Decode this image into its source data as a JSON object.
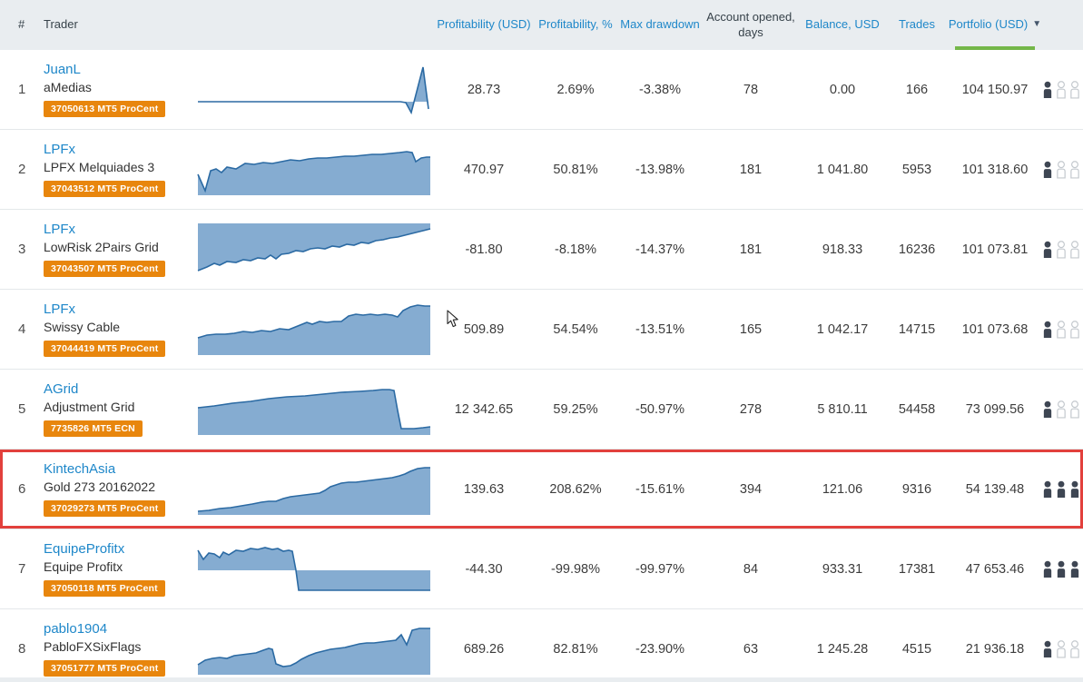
{
  "header": {
    "rank": "#",
    "trader": "Trader",
    "profitability_usd": "Profitability (USD)",
    "profitability_pct": "Profitability, %",
    "max_drawdown": "Max drawdown",
    "account_opened": "Account opened, days",
    "balance": "Balance, USD",
    "trades": "Trades",
    "portfolio": "Portfolio (USD)",
    "sort_icon": "▼",
    "sorted_column": "Portfolio (USD)",
    "sort_direction": "descending"
  },
  "colors": {
    "header_bg": "#e9edf0",
    "link_blue": "#1e87c9",
    "badge_orange": "#e8860d",
    "spark_fill": "#85acd1",
    "spark_stroke": "#2b6aa3",
    "highlight_red": "#e2403c",
    "active_sort_green": "#74b749"
  },
  "rows": [
    {
      "rank": "1",
      "name": "JuanL",
      "strategy": "aMedias",
      "account_badge": "37050613 MT5 ProCent",
      "profitability_usd": "28.73",
      "profitability_pct": "2.69%",
      "max_drawdown": "-3.38%",
      "days": "78",
      "balance": "0.00",
      "trades": "166",
      "portfolio": "104 150.97",
      "investors_filled": 1,
      "investors_total": 3,
      "highlighted": false,
      "spark": {
        "mode": "baseline",
        "baseline": 42,
        "points": [
          [
            2,
            42
          ],
          [
            120,
            42
          ],
          [
            225,
            42
          ],
          [
            231,
            43
          ],
          [
            237,
            54
          ],
          [
            250,
            4
          ],
          [
            256,
            50
          ]
        ]
      }
    },
    {
      "rank": "2",
      "name": "LPFx",
      "strategy": "LPFX Melquiades 3",
      "account_badge": "37043512 MT5 ProCent",
      "profitability_usd": "470.97",
      "profitability_pct": "50.81%",
      "max_drawdown": "-13.98%",
      "days": "181",
      "balance": "1 041.80",
      "trades": "5953",
      "portfolio": "101 318.60",
      "investors_filled": 1,
      "investors_total": 3,
      "highlighted": false,
      "spark": {
        "mode": "bottom",
        "points": [
          [
            2,
            34
          ],
          [
            10,
            52
          ],
          [
            16,
            30
          ],
          [
            22,
            28
          ],
          [
            28,
            32
          ],
          [
            34,
            26
          ],
          [
            44,
            28
          ],
          [
            54,
            22
          ],
          [
            64,
            23
          ],
          [
            74,
            21
          ],
          [
            84,
            22
          ],
          [
            94,
            20
          ],
          [
            104,
            18
          ],
          [
            114,
            19
          ],
          [
            124,
            17
          ],
          [
            134,
            16
          ],
          [
            144,
            16
          ],
          [
            154,
            15
          ],
          [
            164,
            14
          ],
          [
            174,
            14
          ],
          [
            184,
            13
          ],
          [
            194,
            12
          ],
          [
            204,
            12
          ],
          [
            214,
            11
          ],
          [
            224,
            10
          ],
          [
            232,
            9
          ],
          [
            238,
            10
          ],
          [
            242,
            20
          ],
          [
            248,
            16
          ],
          [
            254,
            15
          ],
          [
            258,
            15
          ]
        ]
      }
    },
    {
      "rank": "3",
      "name": "LPFx",
      "strategy": "LowRisk 2Pairs Grid",
      "account_badge": "37043507 MT5 ProCent",
      "profitability_usd": "-81.80",
      "profitability_pct": "-8.18%",
      "max_drawdown": "-14.37%",
      "days": "181",
      "balance": "918.33",
      "trades": "16236",
      "portfolio": "101 073.81",
      "investors_filled": 1,
      "investors_total": 3,
      "highlighted": false,
      "spark": {
        "mode": "top",
        "points": [
          [
            2,
            52
          ],
          [
            12,
            48
          ],
          [
            20,
            44
          ],
          [
            26,
            46
          ],
          [
            34,
            42
          ],
          [
            44,
            43
          ],
          [
            52,
            40
          ],
          [
            60,
            41
          ],
          [
            68,
            38
          ],
          [
            76,
            39
          ],
          [
            82,
            35
          ],
          [
            88,
            39
          ],
          [
            94,
            34
          ],
          [
            102,
            33
          ],
          [
            110,
            30
          ],
          [
            118,
            31
          ],
          [
            126,
            28
          ],
          [
            134,
            27
          ],
          [
            142,
            28
          ],
          [
            150,
            25
          ],
          [
            158,
            26
          ],
          [
            166,
            23
          ],
          [
            174,
            24
          ],
          [
            182,
            21
          ],
          [
            190,
            22
          ],
          [
            198,
            19
          ],
          [
            206,
            18
          ],
          [
            214,
            16
          ],
          [
            222,
            15
          ],
          [
            230,
            13
          ],
          [
            238,
            11
          ],
          [
            246,
            9
          ],
          [
            254,
            7
          ],
          [
            258,
            6
          ]
        ]
      }
    },
    {
      "rank": "4",
      "name": "LPFx",
      "strategy": "Swissy Cable",
      "account_badge": "37044419 MT5 ProCent",
      "profitability_usd": "509.89",
      "profitability_pct": "54.54%",
      "max_drawdown": "-13.51%",
      "days": "165",
      "balance": "1 042.17",
      "trades": "14715",
      "portfolio": "101 073.68",
      "investors_filled": 1,
      "investors_total": 3,
      "highlighted": false,
      "spark": {
        "mode": "bottom",
        "points": [
          [
            2,
            38
          ],
          [
            12,
            35
          ],
          [
            22,
            34
          ],
          [
            32,
            34
          ],
          [
            42,
            33
          ],
          [
            52,
            31
          ],
          [
            62,
            32
          ],
          [
            72,
            30
          ],
          [
            82,
            31
          ],
          [
            92,
            28
          ],
          [
            102,
            29
          ],
          [
            112,
            25
          ],
          [
            122,
            21
          ],
          [
            128,
            23
          ],
          [
            136,
            20
          ],
          [
            144,
            21
          ],
          [
            152,
            20
          ],
          [
            160,
            20
          ],
          [
            168,
            14
          ],
          [
            176,
            12
          ],
          [
            184,
            13
          ],
          [
            192,
            12
          ],
          [
            200,
            13
          ],
          [
            208,
            12
          ],
          [
            216,
            13
          ],
          [
            222,
            15
          ],
          [
            228,
            8
          ],
          [
            236,
            4
          ],
          [
            244,
            2
          ],
          [
            252,
            3
          ],
          [
            258,
            3
          ]
        ]
      }
    },
    {
      "rank": "5",
      "name": "AGrid",
      "strategy": "Adjustment Grid",
      "account_badge": "7735826 MT5 ECN",
      "profitability_usd": "12 342.65",
      "profitability_pct": "59.25%",
      "max_drawdown": "-50.97%",
      "days": "278",
      "balance": "5 810.11",
      "trades": "54458",
      "portfolio": "73 099.56",
      "investors_filled": 1,
      "investors_total": 3,
      "highlighted": false,
      "spark": {
        "mode": "bottom",
        "points": [
          [
            2,
            27
          ],
          [
            20,
            25
          ],
          [
            40,
            22
          ],
          [
            60,
            20
          ],
          [
            80,
            17
          ],
          [
            100,
            15
          ],
          [
            120,
            14
          ],
          [
            140,
            12
          ],
          [
            160,
            10
          ],
          [
            180,
            9
          ],
          [
            195,
            8
          ],
          [
            205,
            7
          ],
          [
            213,
            7
          ],
          [
            218,
            8
          ],
          [
            222,
            30
          ],
          [
            226,
            50
          ],
          [
            240,
            50
          ],
          [
            250,
            49
          ],
          [
            258,
            48
          ]
        ]
      }
    },
    {
      "rank": "6",
      "name": "KintechAsia",
      "strategy": "Gold 273 20162022",
      "account_badge": "37029273 MT5 ProCent",
      "profitability_usd": "139.63",
      "profitability_pct": "208.62%",
      "max_drawdown": "-15.61%",
      "days": "394",
      "balance": "121.06",
      "trades": "9316",
      "portfolio": "54 139.48",
      "investors_filled": 3,
      "investors_total": 3,
      "highlighted": true,
      "spark": {
        "mode": "bottom",
        "points": [
          [
            2,
            53
          ],
          [
            14,
            52
          ],
          [
            26,
            50
          ],
          [
            38,
            49
          ],
          [
            50,
            47
          ],
          [
            62,
            45
          ],
          [
            72,
            43
          ],
          [
            80,
            42
          ],
          [
            88,
            42
          ],
          [
            96,
            39
          ],
          [
            104,
            37
          ],
          [
            112,
            36
          ],
          [
            120,
            35
          ],
          [
            128,
            34
          ],
          [
            136,
            33
          ],
          [
            142,
            30
          ],
          [
            148,
            26
          ],
          [
            154,
            24
          ],
          [
            160,
            22
          ],
          [
            168,
            21
          ],
          [
            176,
            21
          ],
          [
            184,
            20
          ],
          [
            192,
            19
          ],
          [
            200,
            18
          ],
          [
            208,
            17
          ],
          [
            216,
            16
          ],
          [
            224,
            14
          ],
          [
            230,
            12
          ],
          [
            236,
            9
          ],
          [
            244,
            6
          ],
          [
            252,
            5
          ],
          [
            258,
            5
          ]
        ]
      }
    },
    {
      "rank": "7",
      "name": "EquipeProfitx",
      "strategy": "Equipe Profitx",
      "account_badge": "37050118 MT5 ProCent",
      "profitability_usd": "-44.30",
      "profitability_pct": "-99.98%",
      "max_drawdown": "-99.97%",
      "days": "84",
      "balance": "933.31",
      "trades": "17381",
      "portfolio": "47 653.46",
      "investors_filled": 3,
      "investors_total": 3,
      "highlighted": false,
      "spark": {
        "mode": "baseline",
        "baseline": 30,
        "points": [
          [
            2,
            8
          ],
          [
            8,
            18
          ],
          [
            14,
            11
          ],
          [
            20,
            12
          ],
          [
            26,
            16
          ],
          [
            30,
            10
          ],
          [
            36,
            13
          ],
          [
            44,
            8
          ],
          [
            52,
            9
          ],
          [
            60,
            6
          ],
          [
            68,
            7
          ],
          [
            76,
            5
          ],
          [
            84,
            7
          ],
          [
            90,
            6
          ],
          [
            96,
            9
          ],
          [
            102,
            8
          ],
          [
            106,
            9
          ],
          [
            110,
            30
          ],
          [
            113,
            52
          ],
          [
            120,
            52
          ],
          [
            258,
            52
          ]
        ]
      }
    },
    {
      "rank": "8",
      "name": "pablo1904",
      "strategy": "PabloFXSixFlags",
      "account_badge": "37051777 MT5 ProCent",
      "profitability_usd": "689.26",
      "profitability_pct": "82.81%",
      "max_drawdown": "-23.90%",
      "days": "63",
      "balance": "1 245.28",
      "trades": "4515",
      "portfolio": "21 936.18",
      "investors_filled": 1,
      "investors_total": 3,
      "highlighted": false,
      "spark": {
        "mode": "bottom",
        "points": [
          [
            2,
            46
          ],
          [
            10,
            41
          ],
          [
            18,
            39
          ],
          [
            26,
            38
          ],
          [
            34,
            39
          ],
          [
            42,
            36
          ],
          [
            50,
            35
          ],
          [
            58,
            34
          ],
          [
            66,
            33
          ],
          [
            74,
            30
          ],
          [
            80,
            28
          ],
          [
            84,
            29
          ],
          [
            88,
            45
          ],
          [
            96,
            48
          ],
          [
            104,
            47
          ],
          [
            110,
            44
          ],
          [
            116,
            40
          ],
          [
            124,
            36
          ],
          [
            132,
            33
          ],
          [
            140,
            31
          ],
          [
            148,
            29
          ],
          [
            156,
            28
          ],
          [
            164,
            27
          ],
          [
            172,
            25
          ],
          [
            180,
            23
          ],
          [
            188,
            22
          ],
          [
            196,
            22
          ],
          [
            204,
            21
          ],
          [
            212,
            20
          ],
          [
            220,
            19
          ],
          [
            226,
            13
          ],
          [
            232,
            24
          ],
          [
            238,
            8
          ],
          [
            246,
            6
          ],
          [
            252,
            6
          ],
          [
            258,
            6
          ]
        ]
      }
    }
  ]
}
